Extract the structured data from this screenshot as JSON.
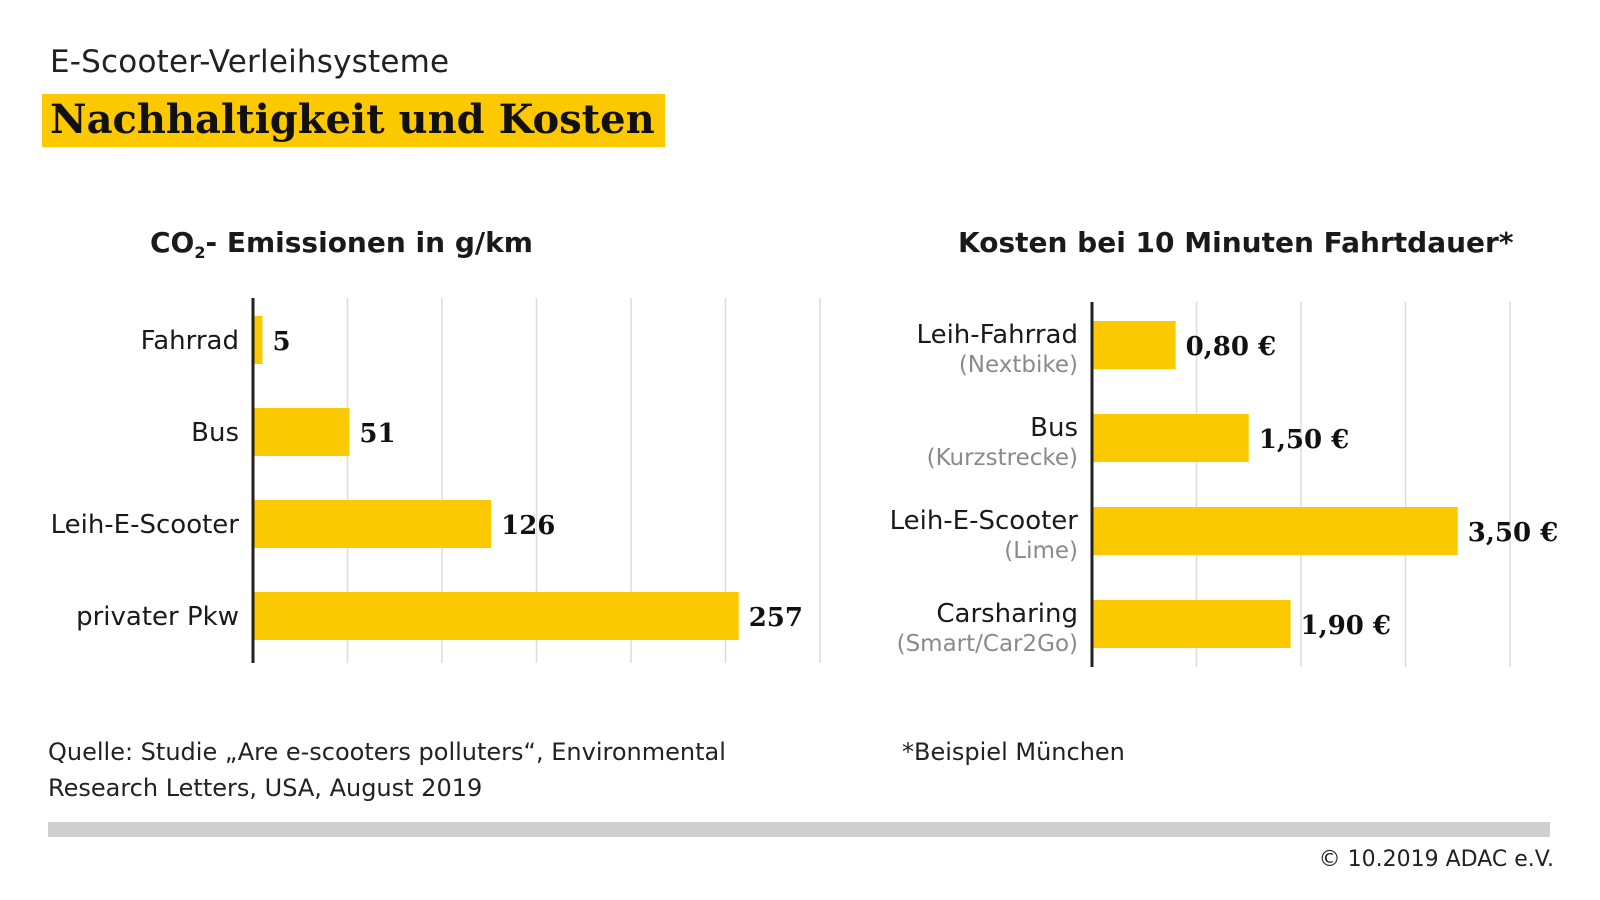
{
  "header": {
    "subtitle": "E-Scooter-Verleihsysteme",
    "title": "Nachhaltigkeit und Kosten"
  },
  "chart_data": [
    {
      "type": "bar",
      "orientation": "horizontal",
      "title_prefix": "CO",
      "title_sub": "2",
      "title_suffix": "- Emissionen in  g/km",
      "categories": [
        "Fahrrad",
        "Bus",
        "Leih-E-Scooter",
        "privater Pkw"
      ],
      "sublabels": [
        "",
        "",
        "",
        ""
      ],
      "values": [
        5,
        51,
        126,
        257
      ],
      "value_labels": [
        "5",
        "51",
        "126",
        "257"
      ],
      "xlim": [
        0,
        300
      ],
      "grid_step": 50,
      "grid": true,
      "bar_color": "#fcc800"
    },
    {
      "type": "bar",
      "orientation": "horizontal",
      "title": "Kosten bei 10 Minuten Fahrtdauer*",
      "categories": [
        "Leih-Fahrrad",
        "Bus",
        "Leih-E-Scooter",
        "Carsharing"
      ],
      "sublabels": [
        "(Nextbike)",
        "(Kurzstrecke)",
        "(Lime)",
        "(Smart/Car2Go)"
      ],
      "values": [
        0.8,
        1.5,
        3.5,
        1.9
      ],
      "value_labels": [
        "0,80 €",
        "1,50 €",
        "3,50 €",
        "1,90 €"
      ],
      "xlim": [
        0,
        4.5
      ],
      "grid_step": 1,
      "grid": true,
      "bar_color": "#fcc800"
    }
  ],
  "footer": {
    "source": "Quelle: Studie „Are e-scooters polluters“, Environmental Research Letters, USA, August 2019",
    "footnote": "*Beispiel München",
    "copyright": "© 10.2019  ADAC e.V."
  }
}
